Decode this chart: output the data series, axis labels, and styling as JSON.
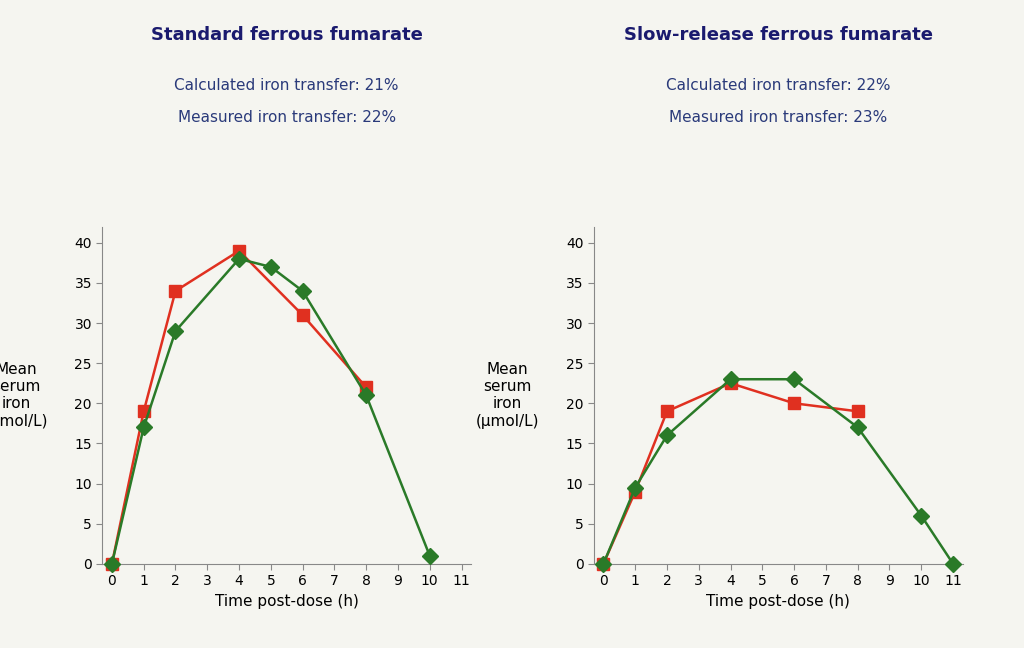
{
  "left_title": "Standard ferrous fumarate",
  "left_subtitle1": "Calculated iron transfer: 21%",
  "left_subtitle2": "Measured iron transfer: 22%",
  "right_title": "Slow-release ferrous fumarate",
  "right_subtitle1": "Calculated iron transfer: 22%",
  "right_subtitle2": "Measured iron transfer: 23%",
  "ylabel": "Mean\nserum\niron\n(μmol/L)",
  "xlabel": "Time post-dose (h)",
  "left_red_x": [
    0,
    1,
    2,
    4,
    6,
    8
  ],
  "left_red_y": [
    0,
    19,
    34,
    39,
    31,
    22
  ],
  "left_green_x": [
    0,
    1,
    2,
    4,
    5,
    6,
    8,
    10
  ],
  "left_green_y": [
    0,
    17,
    29,
    38,
    37,
    34,
    21,
    1
  ],
  "right_red_x": [
    0,
    1,
    2,
    4,
    6,
    8
  ],
  "right_red_y": [
    0,
    9,
    19,
    22.5,
    20,
    19
  ],
  "right_green_x": [
    0,
    1,
    2,
    4,
    6,
    8,
    10,
    11
  ],
  "right_green_y": [
    0,
    9.5,
    16,
    23,
    23,
    17,
    6,
    0
  ],
  "xlim": [
    -0.3,
    11.3
  ],
  "ylim": [
    0,
    42
  ],
  "yticks": [
    0,
    5,
    10,
    15,
    20,
    25,
    30,
    35,
    40
  ],
  "xticks": [
    0,
    1,
    2,
    3,
    4,
    5,
    6,
    7,
    8,
    9,
    10,
    11
  ],
  "red_color": "#e03020",
  "green_color": "#2a7a28",
  "background_color": "#f5f5f0",
  "title_color": "#1a1a6e",
  "subtitle_color": "#2a3a7a",
  "title_fontsize": 13,
  "subtitle_fontsize": 11,
  "axis_label_fontsize": 11,
  "tick_fontsize": 10,
  "marker_size": 8,
  "linewidth": 1.8
}
